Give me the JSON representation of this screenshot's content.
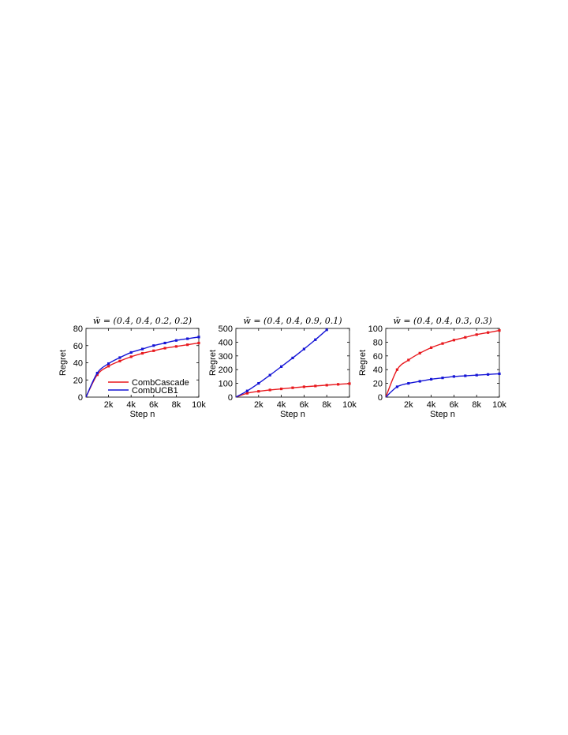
{
  "colors": {
    "CombCascade": "#e8191e",
    "CombUCB1": "#1515d6"
  },
  "chart_data": [
    {
      "type": "line",
      "title": "w̄ = (0.4, 0.4, 0.2, 0.2)",
      "xlabel": "Step n",
      "ylabel": "Regret",
      "xlim": [
        0,
        10000
      ],
      "ylim": [
        0,
        80
      ],
      "xticks": [
        2000,
        4000,
        6000,
        8000,
        10000
      ],
      "xtick_labels": [
        "2k",
        "4k",
        "6k",
        "8k",
        "10k"
      ],
      "yticks": [
        0,
        20,
        40,
        60,
        80
      ],
      "ytick_labels": [
        "0",
        "20",
        "40",
        "60",
        "80"
      ],
      "legend": {
        "position": "bottom-right",
        "entries": [
          "CombCascade",
          "CombUCB1"
        ]
      },
      "x": [
        0,
        1000,
        2000,
        3000,
        4000,
        5000,
        6000,
        7000,
        8000,
        9000,
        10000
      ],
      "series": [
        {
          "name": "CombCascade",
          "color": "red",
          "values": [
            0,
            26,
            36,
            42,
            47,
            51,
            54,
            57,
            59,
            61,
            63
          ]
        },
        {
          "name": "CombUCB1",
          "color": "blue",
          "values": [
            0,
            28,
            39,
            46,
            52,
            56,
            60,
            63,
            66,
            68,
            70
          ]
        }
      ]
    },
    {
      "type": "line",
      "title": "w̄ = (0.4, 0.4, 0.9, 0.1)",
      "xlabel": "Step n",
      "ylabel": "Regret",
      "xlim": [
        0,
        10000
      ],
      "ylim": [
        0,
        500
      ],
      "xticks": [
        2000,
        4000,
        6000,
        8000,
        10000
      ],
      "xtick_labels": [
        "2k",
        "4k",
        "6k",
        "8k",
        "10k"
      ],
      "yticks": [
        0,
        100,
        200,
        300,
        400,
        500
      ],
      "ytick_labels": [
        "0",
        "100",
        "200",
        "300",
        "400",
        "500"
      ],
      "x": [
        0,
        1000,
        2000,
        3000,
        4000,
        5000,
        6000,
        7000,
        8000,
        9000,
        10000
      ],
      "series": [
        {
          "name": "CombCascade",
          "color": "red",
          "values": [
            0,
            28,
            42,
            52,
            60,
            68,
            75,
            81,
            87,
            93,
            98
          ]
        },
        {
          "name": "CombUCB1",
          "color": "blue",
          "values": [
            0,
            45,
            100,
            160,
            222,
            285,
            350,
            418,
            490,
            null,
            null
          ]
        }
      ]
    },
    {
      "type": "line",
      "title": "w̄ = (0.4, 0.4, 0.3, 0.3)",
      "xlabel": "Step n",
      "ylabel": "Regret",
      "xlim": [
        0,
        10000
      ],
      "ylim": [
        0,
        100
      ],
      "xticks": [
        2000,
        4000,
        6000,
        8000,
        10000
      ],
      "xtick_labels": [
        "2k",
        "4k",
        "6k",
        "8k",
        "10k"
      ],
      "yticks": [
        0,
        20,
        40,
        60,
        80,
        100
      ],
      "ytick_labels": [
        "0",
        "20",
        "40",
        "60",
        "80",
        "100"
      ],
      "x": [
        0,
        1000,
        2000,
        3000,
        4000,
        5000,
        6000,
        7000,
        8000,
        9000,
        10000
      ],
      "series": [
        {
          "name": "CombCascade",
          "color": "red",
          "values": [
            0,
            40,
            54,
            64,
            72,
            78,
            83,
            87,
            91,
            94,
            97
          ]
        },
        {
          "name": "CombUCB1",
          "color": "blue",
          "values": [
            0,
            15,
            20,
            23,
            26,
            28,
            30,
            31,
            32,
            33,
            34
          ]
        }
      ]
    }
  ]
}
